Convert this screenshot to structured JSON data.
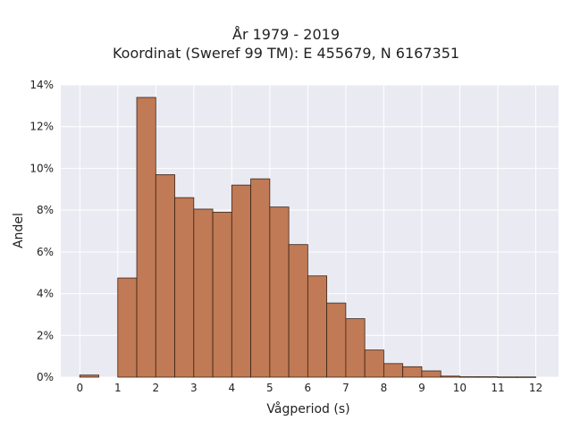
{
  "chart_data": {
    "type": "bar",
    "title_lines": [
      "År 1979 - 2019",
      "Koordinat (Sweref 99 TM): E 455679, N 6167351"
    ],
    "xlabel": "Vågperiod (s)",
    "ylabel": "Andel",
    "bin_width": 0.5,
    "bin_starts": [
      0,
      0.5,
      1,
      1.5,
      2,
      2.5,
      3,
      3.5,
      4,
      4.5,
      5,
      5.5,
      6,
      6.5,
      7,
      7.5,
      8,
      8.5,
      9,
      9.5,
      10,
      10.5,
      11,
      11.5
    ],
    "values": [
      0.1,
      0.0,
      4.75,
      13.4,
      9.7,
      8.6,
      8.05,
      7.9,
      9.2,
      9.5,
      8.15,
      6.35,
      4.85,
      3.55,
      2.8,
      1.3,
      0.65,
      0.5,
      0.3,
      0.05,
      0.02,
      0.02,
      0.01,
      0.01
    ],
    "xticks": [
      0,
      1,
      2,
      3,
      4,
      5,
      6,
      7,
      8,
      9,
      10,
      11,
      12
    ],
    "yticks": [
      0,
      2,
      4,
      6,
      8,
      10,
      12,
      14
    ],
    "ytick_suffix": "%",
    "xlim": [
      -0.5,
      12.6
    ],
    "ylim": [
      0,
      14
    ],
    "grid": true,
    "bar_color": "#c07a55",
    "bar_edge_color": "#3b2416",
    "plot_background": "#eaeaf2",
    "grid_color": "#ffffff"
  }
}
